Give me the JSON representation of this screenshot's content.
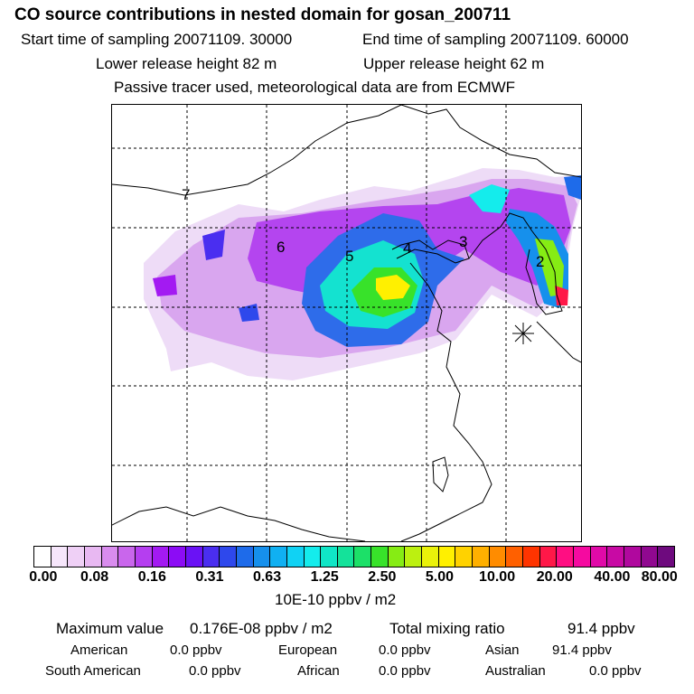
{
  "header": {
    "title": "CO  source contributions in nested domain for gosan_200711",
    "start_time": "Start time of sampling 20071109. 30000",
    "end_time": "End time of sampling 20071109. 60000",
    "lower_release": "Lower release height   82 m",
    "upper_release": "Upper release height   62 m",
    "tracer_note": "Passive tracer used, meteorological data are from ECMWF"
  },
  "map": {
    "station_marker": "receptor-star",
    "source_labels": [
      "7",
      "6",
      "5",
      "4",
      "3",
      "2"
    ]
  },
  "colorbar": {
    "tick_labels": [
      "0.00",
      "0.08",
      "0.16",
      "0.31",
      "0.63",
      "1.25",
      "2.50",
      "5.00",
      "10.00",
      "20.00",
      "40.00",
      "80.00"
    ],
    "unit": "10E-10 ppbv / m2",
    "colors": [
      "#ffffff",
      "#f6e6fb",
      "#efd0f6",
      "#e8b8f2",
      "#d98cee",
      "#c966ec",
      "#b53ef0",
      "#a31af2",
      "#8c0cf5",
      "#6a12f5",
      "#4a2ef0",
      "#2e48ec",
      "#1e6bea",
      "#1690ec",
      "#10b0f2",
      "#10d2f4",
      "#14ecec",
      "#10e6c6",
      "#14e29a",
      "#1ce068",
      "#38e22a",
      "#86ec14",
      "#bcf010",
      "#eaf20a",
      "#fff000",
      "#ffd200",
      "#ffb000",
      "#ff8c00",
      "#ff6000",
      "#ff3400",
      "#ff1848",
      "#ff0e82",
      "#f50aa0",
      "#e00aa8",
      "#c80aa4",
      "#b0089e",
      "#900890",
      "#6e0a7e"
    ]
  },
  "stats": {
    "max_label": "Maximum value",
    "max_value": "0.176E-08 ppbv / m2",
    "total_label": "Total mixing ratio",
    "total_value": "91.4 ppbv"
  },
  "regions": [
    {
      "label": "American",
      "value": "0.0 ppbv"
    },
    {
      "label": "European",
      "value": "0.0 ppbv"
    },
    {
      "label": "Asian",
      "value": "91.4 ppbv"
    },
    {
      "label": "South American",
      "value": "0.0 ppbv"
    },
    {
      "label": "African",
      "value": "0.0 ppbv"
    },
    {
      "label": "Australian",
      "value": "0.0 ppbv"
    }
  ]
}
